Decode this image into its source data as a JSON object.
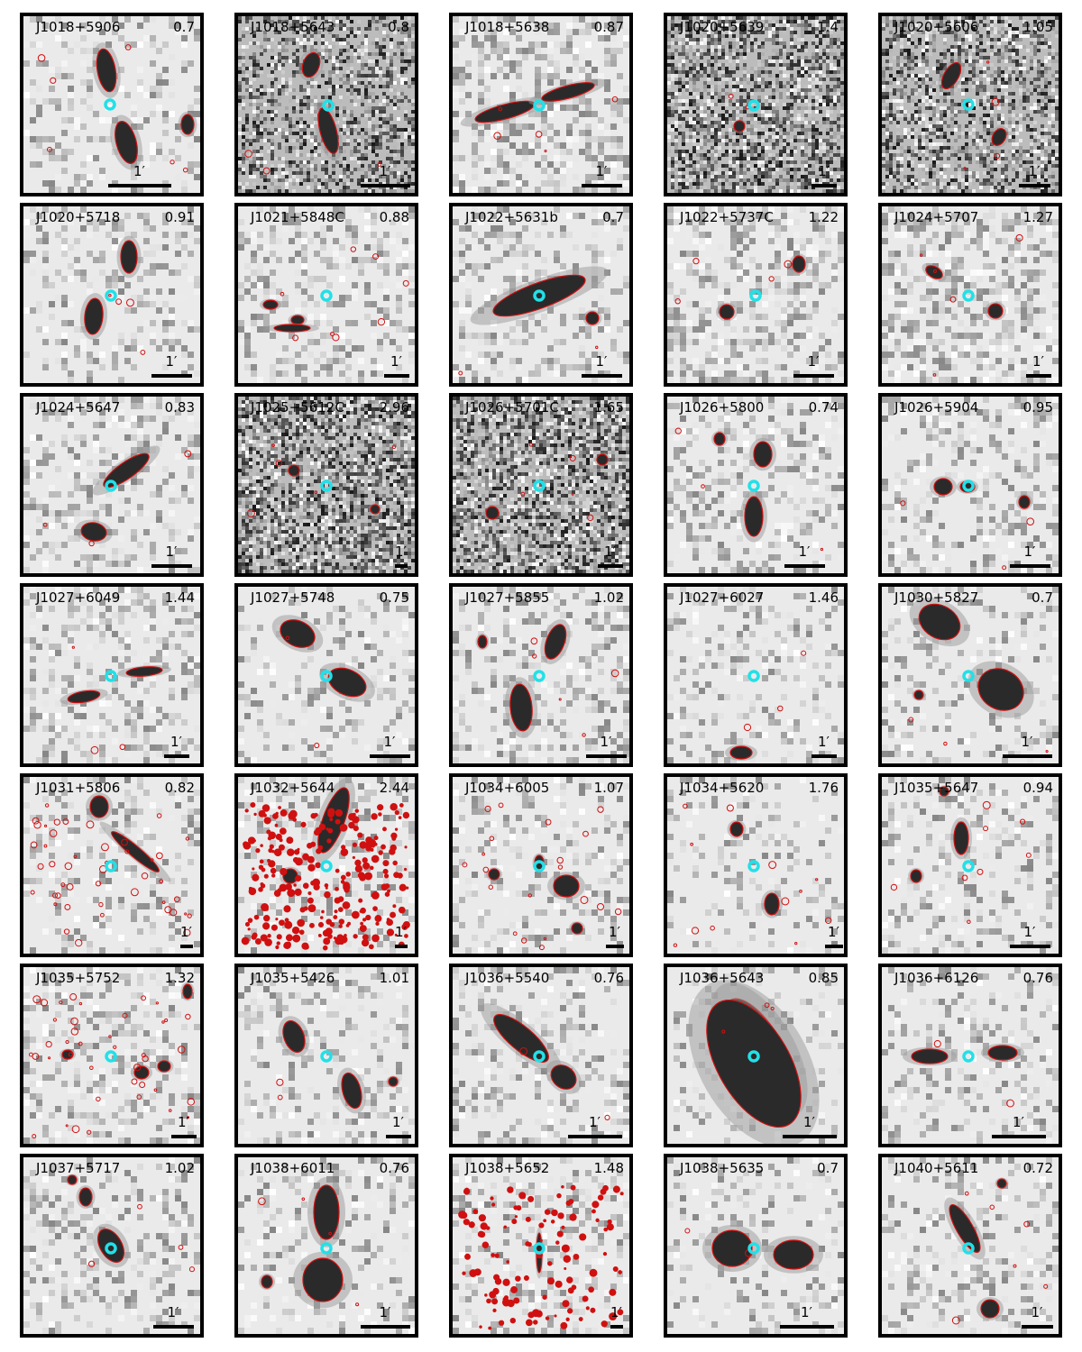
{
  "scale_label": "1′",
  "colors": {
    "contour": "#d01010",
    "host": "#22e0e8",
    "frame": "#000000",
    "noise_dark": "#3a3a3a"
  },
  "panels": [
    {
      "name": "J1018+5906",
      "z": "0.7"
    },
    {
      "name": "J1018+5643",
      "z": "0.8"
    },
    {
      "name": "J1018+5638",
      "z": "0.87"
    },
    {
      "name": "J1020+5639",
      "z": "1.4"
    },
    {
      "name": "J1020+5606",
      "z": "1.05"
    },
    {
      "name": "J1020+5718",
      "z": "0.91"
    },
    {
      "name": "J1021+5848C",
      "z": "0.88"
    },
    {
      "name": "J1022+5631b",
      "z": "0.7"
    },
    {
      "name": "J1022+5737C",
      "z": "1.22"
    },
    {
      "name": "J1024+5707",
      "z": "1.27"
    },
    {
      "name": "J1024+5647",
      "z": "0.83"
    },
    {
      "name": "J1025+5612C",
      "z": "2.96"
    },
    {
      "name": "J1026+5701C",
      "z": "1.65"
    },
    {
      "name": "J1026+5800",
      "z": "0.74"
    },
    {
      "name": "J1026+5904",
      "z": "0.95"
    },
    {
      "name": "J1027+6049",
      "z": "1.44"
    },
    {
      "name": "J1027+5748",
      "z": "0.75"
    },
    {
      "name": "J1027+5855",
      "z": "1.02"
    },
    {
      "name": "J1027+6027",
      "z": "1.46"
    },
    {
      "name": "J1030+5827",
      "z": "0.7"
    },
    {
      "name": "J1031+5806",
      "z": "0.82"
    },
    {
      "name": "J1032+5644",
      "z": "2.44"
    },
    {
      "name": "J1034+6005",
      "z": "1.07"
    },
    {
      "name": "J1034+5620",
      "z": "1.76"
    },
    {
      "name": "J1035+5647",
      "z": "0.94"
    },
    {
      "name": "J1035+5752",
      "z": "1.32"
    },
    {
      "name": "J1035+5426",
      "z": "1.01"
    },
    {
      "name": "J1036+5540",
      "z": "0.76"
    },
    {
      "name": "J1036+5643",
      "z": "0.85"
    },
    {
      "name": "J1036+6126",
      "z": "0.76"
    },
    {
      "name": "J1037+5717",
      "z": "1.02"
    },
    {
      "name": "J1038+6011",
      "z": "0.76"
    },
    {
      "name": "J1038+5652",
      "z": "1.48"
    },
    {
      "name": "J1038+5635",
      "z": "0.7"
    },
    {
      "name": "J1040+5611",
      "z": "0.72"
    }
  ]
}
